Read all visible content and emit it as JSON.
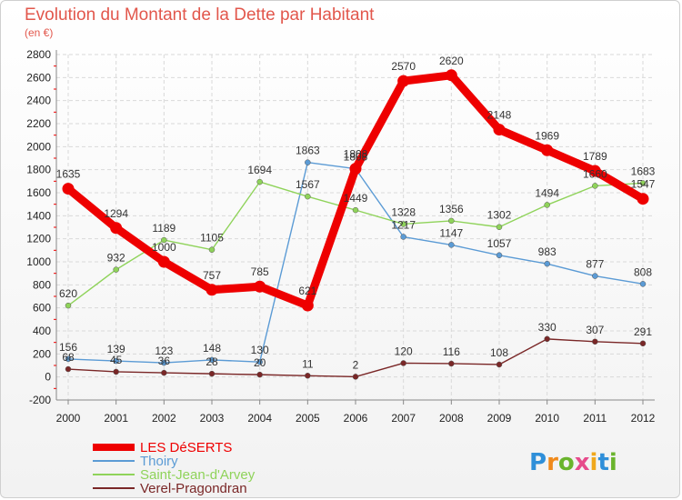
{
  "chart_data": {
    "type": "line",
    "title": "Evolution du Montant de la Dette par Habitant",
    "subtitle": "(en €)",
    "x": [
      "2000",
      "2001",
      "2002",
      "2003",
      "2004",
      "2005",
      "2006",
      "2007",
      "2008",
      "2009",
      "2010",
      "2011",
      "2012"
    ],
    "ylim": [
      -200,
      2800
    ],
    "yticks": [
      -200,
      0,
      200,
      400,
      600,
      800,
      1000,
      1200,
      1400,
      1600,
      1800,
      2000,
      2200,
      2400,
      2600,
      2800
    ],
    "grid": true,
    "legend_position": "bottom-left",
    "series": [
      {
        "name": "LES DéSERTS",
        "color": "#ee0000",
        "values": [
          1635,
          1294,
          1000,
          757,
          785,
          621,
          1808,
          2570,
          2620,
          2148,
          1969,
          1789,
          1547
        ],
        "labels": [
          "1635",
          "1294",
          "1000",
          "757",
          "785",
          "621",
          "1808",
          "2570",
          "2620",
          "2148",
          "1969",
          "1789",
          "1547"
        ]
      },
      {
        "name": "Thoiry",
        "color": "#5b9bd5",
        "values": [
          156,
          139,
          123,
          148,
          130,
          1863,
          1808,
          1217,
          1147,
          1057,
          983,
          877,
          808
        ],
        "labels": [
          "156",
          "139",
          "123",
          "148",
          "130",
          "1863",
          "1808",
          "1217",
          "1147",
          "1057",
          "983",
          "877",
          "808"
        ]
      },
      {
        "name": "Saint-Jean-d'Arvey",
        "color": "#8fd35a",
        "values": [
          620,
          932,
          1189,
          1105,
          1694,
          1567,
          1449,
          1328,
          1356,
          1302,
          1494,
          1660,
          1683
        ],
        "labels": [
          "620",
          "932",
          "1189",
          "1105",
          "1694",
          "1567",
          "1449",
          "1328",
          "1356",
          "1302",
          "1494",
          "1660",
          "1683"
        ]
      },
      {
        "name": "Verel-Pragondran",
        "color": "#7a2727",
        "values": [
          68,
          45,
          36,
          28,
          20,
          11,
          2,
          120,
          116,
          108,
          330,
          307,
          291
        ],
        "labels": [
          "68",
          "45",
          "36",
          "28",
          "20",
          "11",
          "2",
          "120",
          "116",
          "108",
          "330",
          "307",
          "291"
        ]
      }
    ]
  },
  "logo": {
    "letters": [
      "P",
      "r",
      "o",
      "x",
      "i",
      "t",
      "i"
    ],
    "colors": [
      "#2f8fd9",
      "#f08a1c",
      "#6ab42d",
      "#e64b8b",
      "#f0a81c",
      "#2f8fd9",
      "#6ab42d"
    ]
  }
}
